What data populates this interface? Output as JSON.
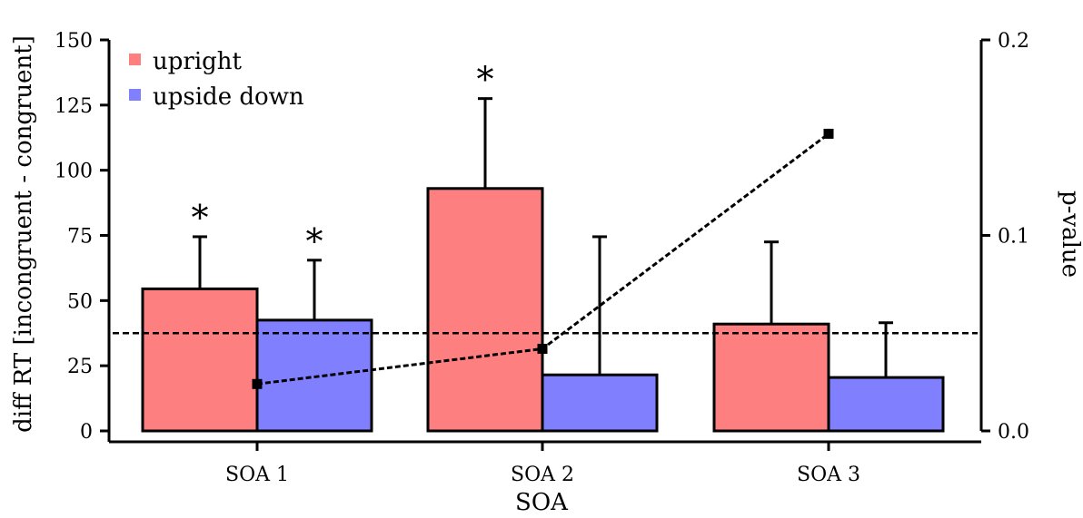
{
  "chart_data": {
    "type": "bar",
    "xlabel": "SOA",
    "ylabel": "diff RT [incongruent - congruent]",
    "y2label": "p-value",
    "categories": [
      "SOA 1",
      "SOA 2",
      "SOA 3"
    ],
    "ylim": [
      0,
      150
    ],
    "yticks": [
      0,
      25,
      50,
      75,
      100,
      125,
      150
    ],
    "y2lim": [
      0,
      0.2
    ],
    "y2ticks": [
      "0.0",
      "0.1",
      "0.2"
    ],
    "legend_position": "top-left",
    "series": [
      {
        "name": "upright",
        "color": "#fd7f7f",
        "values": [
          54.5,
          93,
          41
        ],
        "error_upper": [
          74.5,
          127.5,
          72.5
        ],
        "significant": [
          true,
          true,
          false
        ]
      },
      {
        "name": "upside down",
        "color": "#8080fe",
        "values": [
          42.5,
          21.5,
          20.5
        ],
        "error_upper": [
          65.5,
          74.5,
          41.5
        ],
        "significant": [
          true,
          false,
          false
        ]
      }
    ],
    "significance_marker": "*",
    "p_values": {
      "x": [
        "SOA 1",
        "SOA 2",
        "SOA 3"
      ],
      "values": [
        0.024,
        0.042,
        0.152
      ],
      "style": "dashed-line-square-markers",
      "axis": "right"
    },
    "reference_line": {
      "value": 0.05,
      "axis": "right",
      "style": "dashed"
    },
    "grid": false
  }
}
